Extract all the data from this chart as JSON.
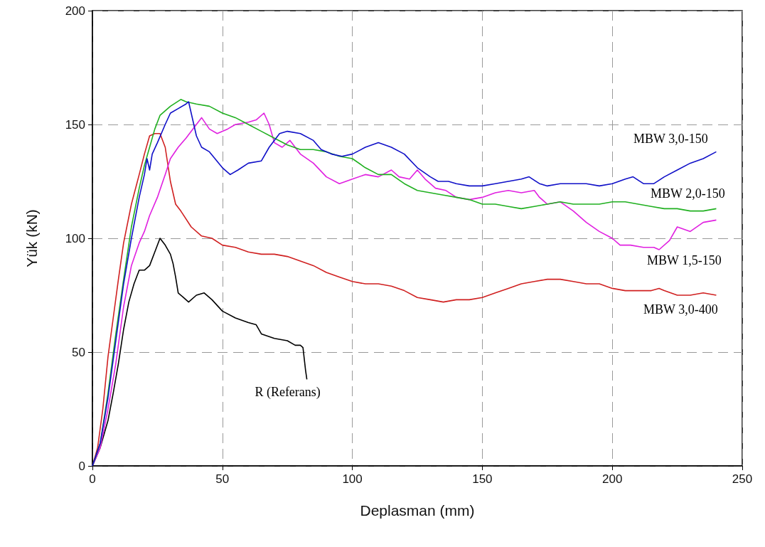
{
  "chart_data": {
    "type": "line",
    "xlabel": "Deplasman (mm)",
    "ylabel": "Yük (kN)",
    "xlim": [
      0,
      250
    ],
    "xticks": [
      0,
      50,
      100,
      150,
      200,
      250
    ],
    "ylim": [
      0,
      200
    ],
    "yticks": [
      0,
      50,
      100,
      150,
      200
    ],
    "grid": true,
    "legend": false,
    "marker": "none",
    "line_style": "solid",
    "series": [
      {
        "name": "MBW 3,0-150",
        "color": "#1010c8",
        "x": [
          0,
          3,
          6,
          9,
          12,
          15,
          18,
          20,
          21,
          22,
          23,
          25,
          28,
          30,
          33,
          36,
          37,
          38,
          40,
          42,
          45,
          50,
          53,
          56,
          60,
          65,
          68,
          72,
          75,
          80,
          85,
          88,
          92,
          96,
          100,
          105,
          110,
          115,
          120,
          125,
          130,
          133,
          137,
          140,
          145,
          150,
          155,
          160,
          165,
          168,
          172,
          175,
          180,
          185,
          190,
          195,
          200,
          205,
          208,
          212,
          216,
          220,
          225,
          230,
          235,
          240
        ],
        "values": [
          0,
          10,
          30,
          55,
          80,
          100,
          118,
          128,
          135,
          130,
          137,
          142,
          150,
          155,
          157,
          159,
          160,
          155,
          145,
          140,
          138,
          131,
          128,
          130,
          133,
          134,
          140,
          146,
          147,
          146,
          143,
          139,
          137,
          136,
          137,
          140,
          142,
          140,
          137,
          131,
          127,
          125,
          125,
          124,
          123,
          123,
          124,
          125,
          126,
          127,
          124,
          123,
          124,
          124,
          124,
          123,
          124,
          126,
          127,
          124,
          124,
          127,
          130,
          133,
          135,
          138
        ]
      },
      {
        "name": "MBW 2,0-150",
        "color": "#20b020",
        "x": [
          0,
          3,
          6,
          9,
          12,
          15,
          18,
          20,
          22,
          24,
          26,
          30,
          34,
          36,
          40,
          45,
          50,
          55,
          60,
          65,
          70,
          75,
          80,
          85,
          90,
          95,
          100,
          105,
          110,
          115,
          120,
          125,
          130,
          135,
          140,
          145,
          150,
          155,
          160,
          165,
          170,
          175,
          180,
          185,
          190,
          195,
          200,
          205,
          210,
          215,
          220,
          225,
          230,
          235,
          240
        ],
        "values": [
          0,
          10,
          32,
          58,
          82,
          105,
          122,
          132,
          140,
          148,
          154,
          158,
          161,
          160,
          159,
          158,
          155,
          153,
          150,
          147,
          144,
          141,
          139,
          139,
          138,
          136,
          135,
          131,
          128,
          128,
          124,
          121,
          120,
          119,
          118,
          117,
          115,
          115,
          114,
          113,
          114,
          115,
          116,
          115,
          115,
          115,
          116,
          116,
          115,
          114,
          113,
          113,
          112,
          112,
          113
        ]
      },
      {
        "name": "MBW 1,5-150",
        "color": "#e020e0",
        "x": [
          0,
          3,
          6,
          9,
          12,
          15,
          18,
          20,
          22,
          25,
          28,
          30,
          33,
          36,
          40,
          42,
          45,
          48,
          52,
          55,
          60,
          63,
          66,
          68,
          70,
          73,
          76,
          80,
          85,
          90,
          95,
          100,
          105,
          110,
          115,
          118,
          122,
          125,
          128,
          132,
          136,
          140,
          145,
          150,
          155,
          160,
          165,
          170,
          172,
          175,
          180,
          185,
          190,
          195,
          200,
          203,
          207,
          212,
          216,
          218,
          222,
          225,
          230,
          235,
          240
        ],
        "values": [
          0,
          8,
          25,
          45,
          70,
          88,
          98,
          103,
          110,
          118,
          128,
          135,
          140,
          144,
          150,
          153,
          148,
          146,
          148,
          150,
          151,
          152,
          155,
          150,
          142,
          140,
          143,
          137,
          133,
          127,
          124,
          126,
          128,
          127,
          130,
          127,
          126,
          130,
          126,
          122,
          121,
          118,
          117,
          118,
          120,
          121,
          120,
          121,
          118,
          115,
          116,
          112,
          107,
          103,
          100,
          97,
          97,
          96,
          96,
          95,
          99,
          105,
          103,
          107,
          108
        ]
      },
      {
        "name": "MBW 3,0-400",
        "color": "#d02020",
        "x": [
          0,
          2,
          4,
          6,
          8,
          10,
          12,
          15,
          18,
          20,
          22,
          24,
          26,
          28,
          30,
          32,
          34,
          38,
          42,
          46,
          50,
          55,
          60,
          65,
          70,
          75,
          80,
          85,
          90,
          95,
          100,
          105,
          110,
          115,
          120,
          125,
          130,
          135,
          140,
          145,
          150,
          155,
          160,
          165,
          170,
          175,
          180,
          185,
          190,
          195,
          200,
          205,
          210,
          215,
          218,
          220,
          225,
          230,
          235,
          240
        ],
        "values": [
          0,
          8,
          25,
          48,
          65,
          82,
          98,
          115,
          128,
          137,
          145,
          146,
          146,
          140,
          125,
          115,
          112,
          105,
          101,
          100,
          97,
          96,
          94,
          93,
          93,
          92,
          90,
          88,
          85,
          83,
          81,
          80,
          80,
          79,
          77,
          74,
          73,
          72,
          73,
          73,
          74,
          76,
          78,
          80,
          81,
          82,
          82,
          81,
          80,
          80,
          78,
          77,
          77,
          77,
          78,
          77,
          75,
          75,
          76,
          75
        ]
      },
      {
        "name": "R (Referans)",
        "color": "#000000",
        "x": [
          0,
          3,
          6,
          8,
          10,
          12,
          14,
          16,
          18,
          20,
          22,
          24,
          26,
          28,
          30,
          31,
          32,
          33,
          35,
          37,
          40,
          43,
          46,
          50,
          55,
          60,
          63,
          65,
          70,
          75,
          78,
          80,
          81,
          82,
          82.5
        ],
        "values": [
          0,
          8,
          20,
          32,
          45,
          60,
          72,
          80,
          86,
          86,
          88,
          94,
          100,
          97,
          93,
          89,
          83,
          76,
          74,
          72,
          75,
          76,
          73,
          68,
          65,
          63,
          62,
          58,
          56,
          55,
          53,
          53,
          52,
          42,
          38
        ]
      }
    ]
  }
}
